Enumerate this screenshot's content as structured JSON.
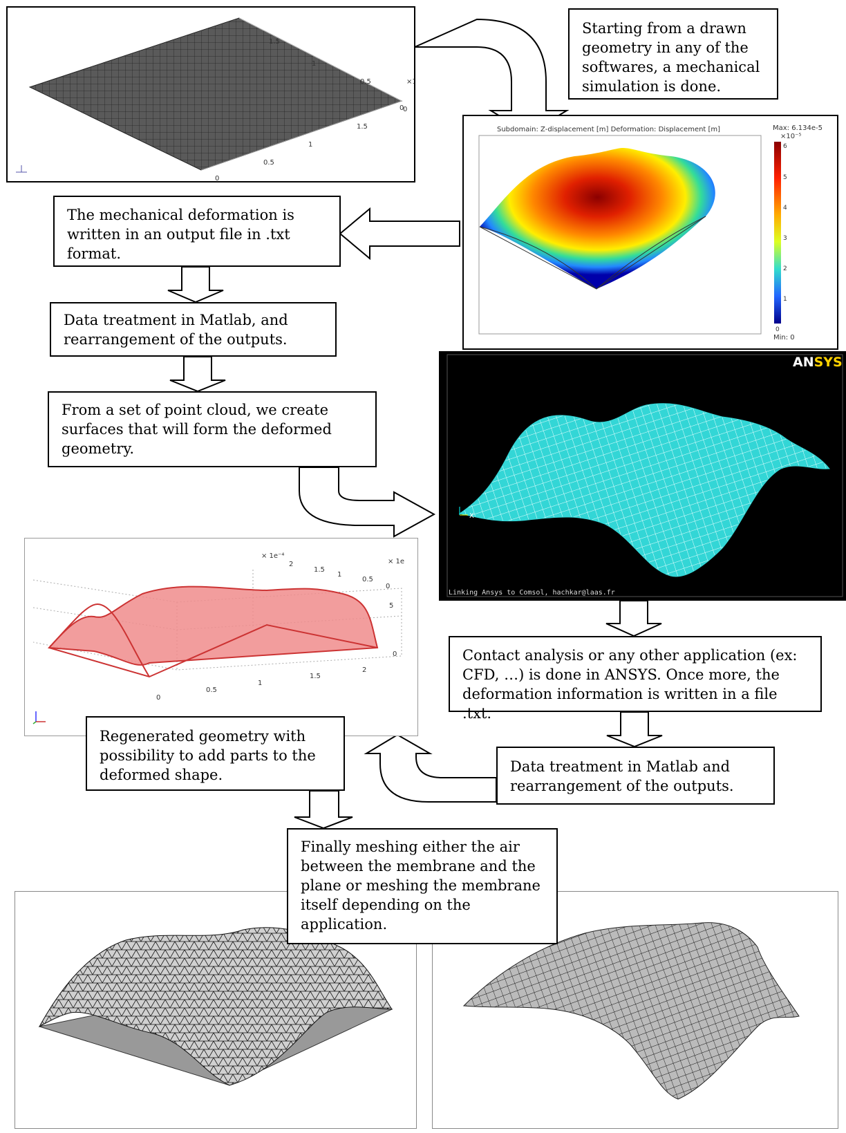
{
  "steps": {
    "step1": "Starting from a drawn geometry in any of the softwares, a mechanical simulation is done.",
    "step2": "The mechanical deformation is written in an output file in .txt format.",
    "step3": "Data treatment in Matlab, and rearrangement of the outputs.",
    "step4": "From a set of point cloud, we create surfaces that will form the deformed geometry.",
    "step5": "Contact analysis or any other application (ex: CFD, …) is done in ANSYS. Once more, the deformation information is written in a file .txt.",
    "step6": "Data treatment in Matlab and rearrangement of the outputs.",
    "step7": "Regenerated geometry with possibility to add parts to the deformed shape.",
    "step8": "Finally meshing either the air between the membrane and the plane or meshing the membrane itself depending on the application."
  },
  "comsol_plot": {
    "title": "Subdomain: Z-displacement [m]   Deformation: Displacement [m]",
    "max_label": "Max: 6.134e-5",
    "min_label": "Min: 0",
    "exponent": "×10⁻⁵",
    "ticks": [
      "6",
      "5",
      "4",
      "3",
      "2",
      "1",
      "0"
    ]
  },
  "ansys_plot": {
    "logo_a": "AN",
    "logo_b": "SYS",
    "caption": "Linking Ansys to Comsol, hachkar@laas.fr",
    "axis_label": "X"
  },
  "flat_plate": {
    "ticks": [
      "1.5",
      "1",
      "0.5",
      "0",
      "0",
      "0.5",
      "1",
      "1.5",
      "0",
      "×1"
    ]
  },
  "regen_plot": {
    "exp_label": "× 1e⁻⁴",
    "ticks_top": [
      "2",
      "1.5",
      "1",
      "0.5",
      "0",
      "5",
      "0"
    ],
    "ticks_bottom": [
      "0",
      "0.5",
      "1",
      "1.5",
      "2"
    ],
    "x_label": "× 1e"
  },
  "colors": {
    "ansys_bg": "#000000",
    "ansys_surface": "#33d6d6",
    "regen_fill": "#f08c8c",
    "regen_edge": "#cc3333"
  }
}
